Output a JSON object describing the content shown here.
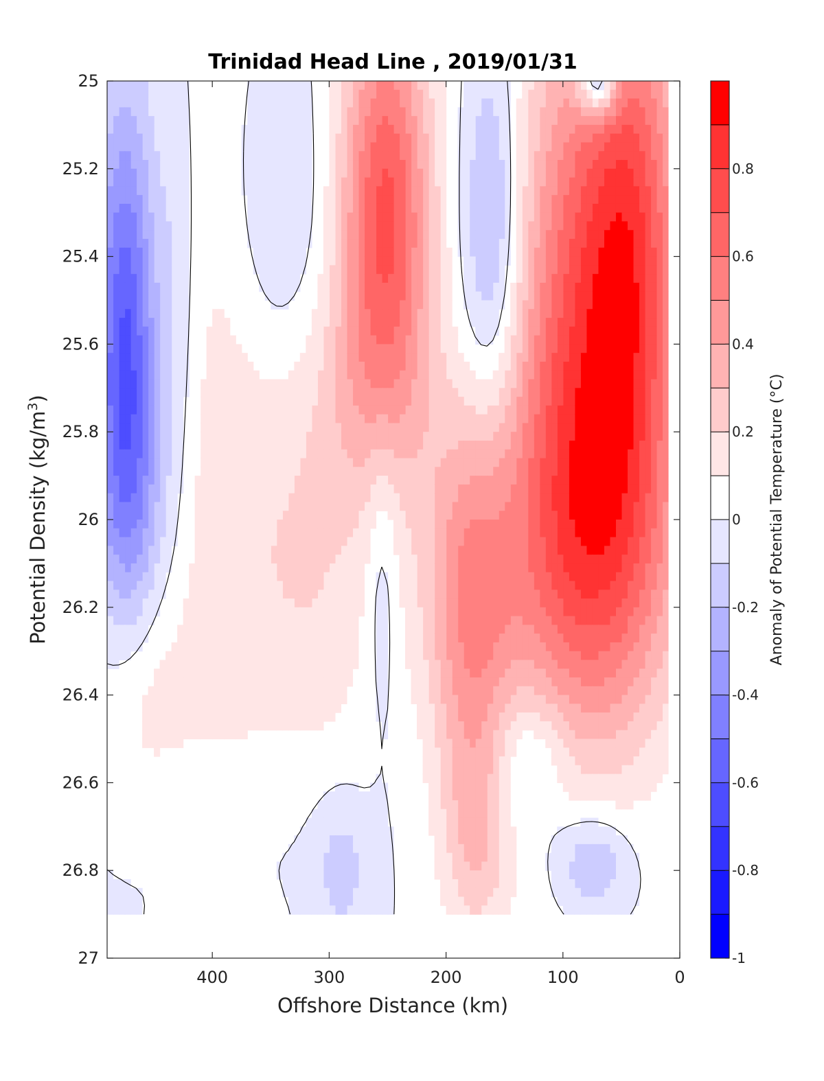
{
  "chart_data": {
    "type": "heatmap",
    "title": "Trinidad Head Line , 2019/01/31",
    "xlabel": "Offshore Distance (km)",
    "ylabel_main": "Potential Density (kg/m",
    "ylabel_sup": "3",
    "ylabel_close": ")",
    "colorbar_label": "Anomaly of Potential Temperature (°C)",
    "xlim": [
      490,
      0
    ],
    "ylim": [
      25,
      27
    ],
    "x_reversed": true,
    "y_reversed": true,
    "xticks": [
      {
        "value": 400,
        "label": "400"
      },
      {
        "value": 300,
        "label": "300"
      },
      {
        "value": 200,
        "label": "200"
      },
      {
        "value": 100,
        "label": "100"
      },
      {
        "value": 0,
        "label": "0"
      }
    ],
    "yticks": [
      {
        "value": 25,
        "label": "25"
      },
      {
        "value": 25.2,
        "label": "25.2"
      },
      {
        "value": 25.4,
        "label": "25.4"
      },
      {
        "value": 25.6,
        "label": "25.6"
      },
      {
        "value": 25.8,
        "label": "25.8"
      },
      {
        "value": 26,
        "label": "26"
      },
      {
        "value": 26.2,
        "label": "26.2"
      },
      {
        "value": 26.4,
        "label": "26.4"
      },
      {
        "value": 26.6,
        "label": "26.6"
      },
      {
        "value": 26.8,
        "label": "26.8"
      },
      {
        "value": 27,
        "label": "27"
      }
    ],
    "colorbar_range": [
      -1,
      1
    ],
    "colorbar_ticks": [
      {
        "value": -1,
        "label": "-1"
      },
      {
        "value": -0.8,
        "label": "-0.8"
      },
      {
        "value": -0.6,
        "label": "-0.6"
      },
      {
        "value": -0.4,
        "label": "-0.4"
      },
      {
        "value": -0.2,
        "label": "-0.2"
      },
      {
        "value": 0,
        "label": "0"
      },
      {
        "value": 0.2,
        "label": "0.2"
      },
      {
        "value": 0.4,
        "label": "0.4"
      },
      {
        "value": 0.6,
        "label": "0.6"
      },
      {
        "value": 0.8,
        "label": "0.8"
      }
    ],
    "levels": [
      {
        "min": -1.0,
        "max": -0.9,
        "color": "#0000ff"
      },
      {
        "min": -0.9,
        "max": -0.8,
        "color": "#1a1aff"
      },
      {
        "min": -0.8,
        "max": -0.7,
        "color": "#3333ff"
      },
      {
        "min": -0.7,
        "max": -0.6,
        "color": "#4d4dff"
      },
      {
        "min": -0.6,
        "max": -0.5,
        "color": "#6666ff"
      },
      {
        "min": -0.5,
        "max": -0.4,
        "color": "#8080ff"
      },
      {
        "min": -0.4,
        "max": -0.3,
        "color": "#9999ff"
      },
      {
        "min": -0.3,
        "max": -0.2,
        "color": "#b3b3ff"
      },
      {
        "min": -0.2,
        "max": -0.1,
        "color": "#ccccff"
      },
      {
        "min": -0.1,
        "max": 0.0,
        "color": "#e6e6ff"
      },
      {
        "min": 0.0,
        "max": 0.1,
        "color": "#ffffff"
      },
      {
        "min": 0.1,
        "max": 0.2,
        "color": "#ffe6e6"
      },
      {
        "min": 0.2,
        "max": 0.3,
        "color": "#ffcccc"
      },
      {
        "min": 0.3,
        "max": 0.4,
        "color": "#ffb3b3"
      },
      {
        "min": 0.4,
        "max": 0.5,
        "color": "#ff9999"
      },
      {
        "min": 0.5,
        "max": 0.6,
        "color": "#ff8080"
      },
      {
        "min": 0.6,
        "max": 0.7,
        "color": "#ff6666"
      },
      {
        "min": 0.7,
        "max": 0.8,
        "color": "#ff4d4d"
      },
      {
        "min": 0.8,
        "max": 0.9,
        "color": "#ff3333"
      },
      {
        "min": 0.9,
        "max": 1.0,
        "color": "#ff0000"
      }
    ],
    "contour_level": 0,
    "data_x_range": [
      10,
      490
    ],
    "data_y_range": [
      25,
      26.9
    ],
    "features": [
      {
        "x": 475,
        "y": 25.55,
        "sx": 18,
        "sy": 0.35,
        "amp": -0.55
      },
      {
        "x": 470,
        "y": 25.95,
        "sx": 22,
        "sy": 0.25,
        "amp": -0.25
      },
      {
        "x": 430,
        "y": 25.45,
        "sx": 12,
        "sy": 0.35,
        "amp": -0.1
      },
      {
        "x": 395,
        "y": 25.9,
        "sx": 30,
        "sy": 0.7,
        "amp": 0.12
      },
      {
        "x": 340,
        "y": 25.3,
        "sx": 30,
        "sy": 0.25,
        "amp": -0.12
      },
      {
        "x": 320,
        "y": 26.1,
        "sx": 45,
        "sy": 0.35,
        "amp": 0.2
      },
      {
        "x": 460,
        "y": 26.4,
        "sx": 30,
        "sy": 0.2,
        "amp": 0.15
      },
      {
        "x": 252,
        "y": 25.3,
        "sx": 28,
        "sy": 0.35,
        "amp": 0.72
      },
      {
        "x": 270,
        "y": 25.7,
        "sx": 40,
        "sy": 0.18,
        "amp": 0.12
      },
      {
        "x": 255,
        "y": 26.1,
        "sx": 10,
        "sy": 0.25,
        "amp": -0.15
      },
      {
        "x": 180,
        "y": 26.2,
        "sx": 28,
        "sy": 0.25,
        "amp": 0.45
      },
      {
        "x": 175,
        "y": 26.7,
        "sx": 22,
        "sy": 0.2,
        "amp": 0.3
      },
      {
        "x": 180,
        "y": 25.85,
        "sx": 40,
        "sy": 0.2,
        "amp": 0.1
      },
      {
        "x": 160,
        "y": 25.35,
        "sx": 18,
        "sy": 0.3,
        "amp": -0.3
      },
      {
        "x": 290,
        "y": 26.8,
        "sx": 16,
        "sy": 0.12,
        "amp": -0.15
      },
      {
        "x": 75,
        "y": 26.78,
        "sx": 22,
        "sy": 0.08,
        "amp": -0.25
      },
      {
        "x": 95,
        "y": 25.6,
        "sx": 38,
        "sy": 0.55,
        "amp": 0.55
      },
      {
        "x": 40,
        "y": 25.4,
        "sx": 32,
        "sy": 0.45,
        "amp": 0.7
      },
      {
        "x": 70,
        "y": 26.1,
        "sx": 55,
        "sy": 0.3,
        "amp": 0.45
      },
      {
        "x": 70,
        "y": 25.0,
        "sx": 12,
        "sy": 0.06,
        "amp": -0.6
      },
      {
        "x": 130,
        "y": 26.55,
        "sx": 25,
        "sy": 0.12,
        "amp": -0.2
      },
      {
        "x": 380,
        "y": 26.7,
        "sx": 70,
        "sy": 0.15,
        "amp": -0.05
      }
    ]
  }
}
